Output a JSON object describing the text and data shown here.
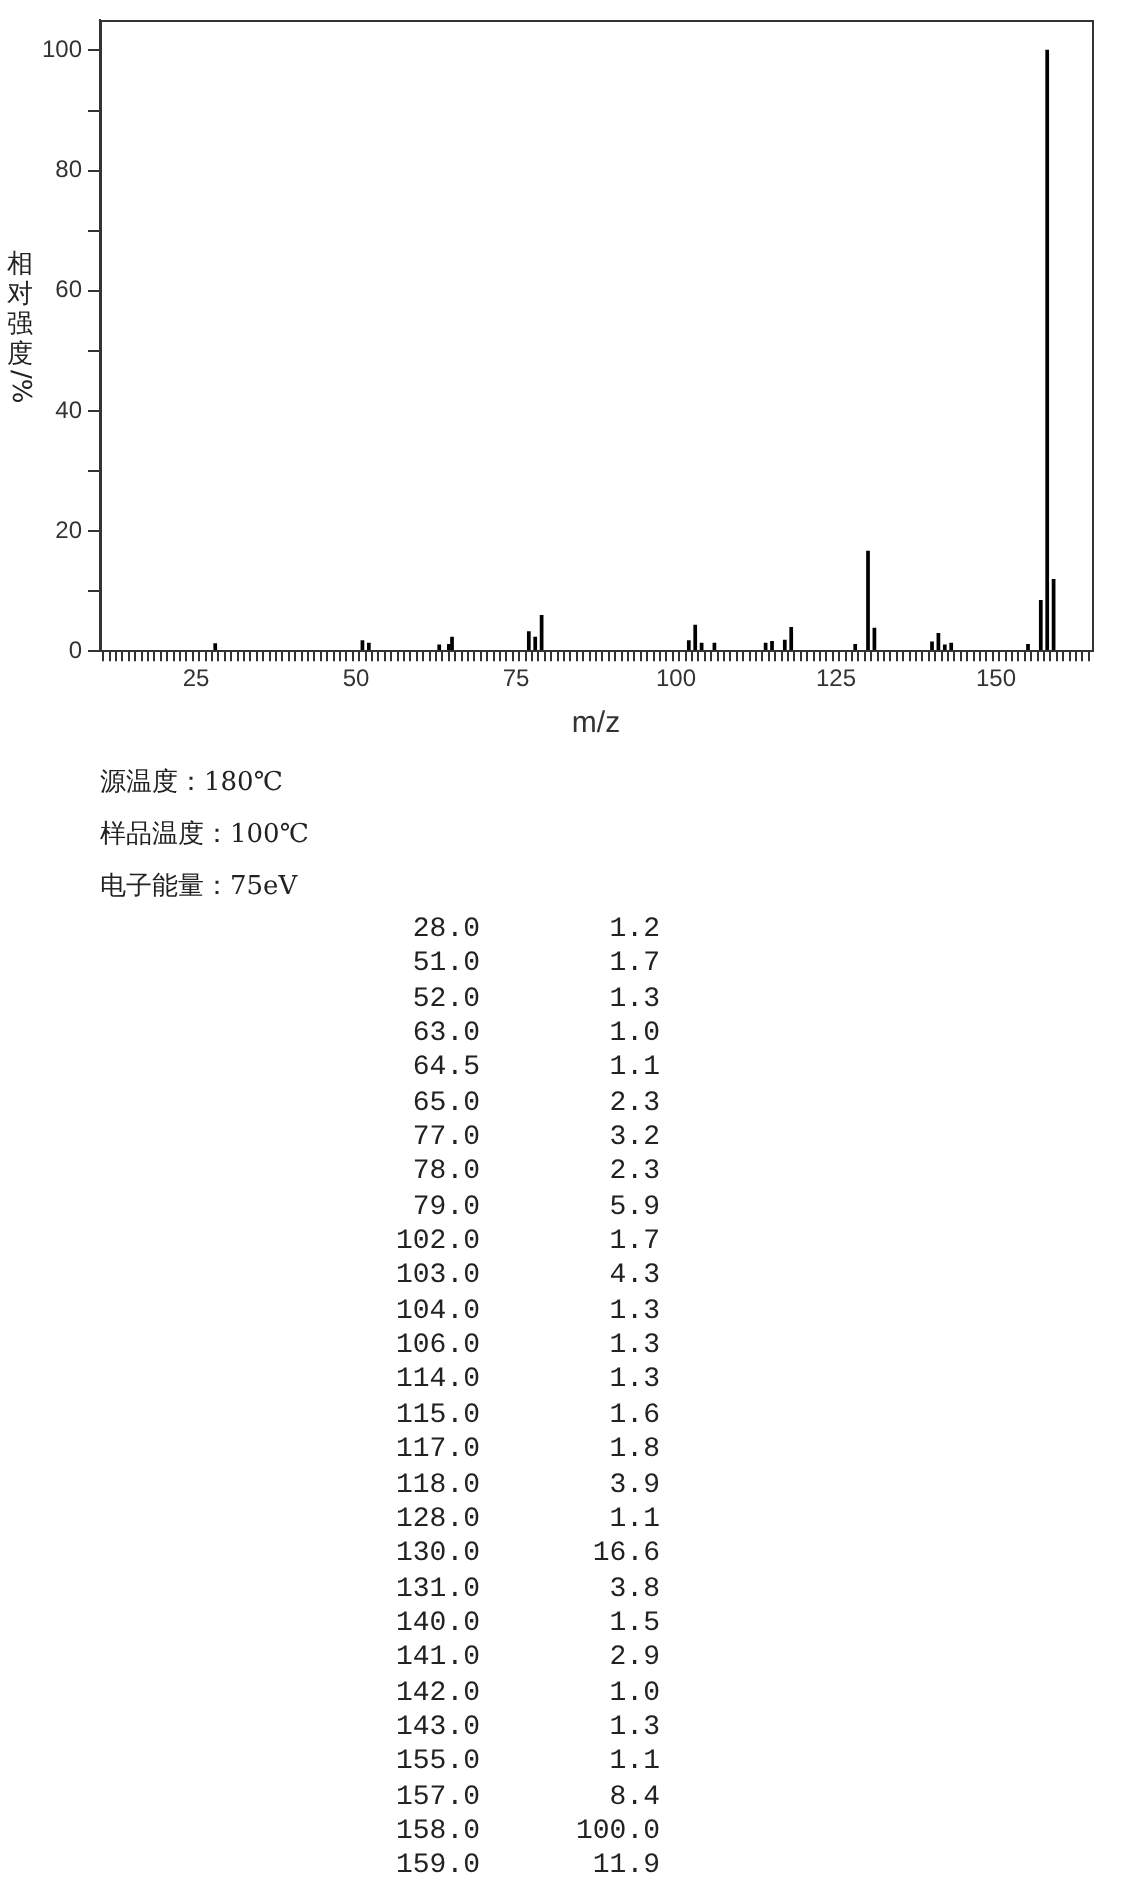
{
  "chart_data": [
    {
      "type": "bar",
      "xlabel": "m/z",
      "ylabel": "相对强度/%",
      "color": "#000000",
      "x": [
        28.0,
        51.0,
        52.0,
        63.0,
        64.5,
        65.0,
        77.0,
        78.0,
        79.0,
        102.0,
        103.0,
        104.0,
        106.0,
        114.0,
        115.0,
        117.0,
        118.0,
        128.0,
        130.0,
        131.0,
        140.0,
        141.0,
        142.0,
        143.0,
        155.0,
        157.0,
        158.0,
        159.0
      ],
      "values": [
        1.2,
        1.7,
        1.3,
        1.0,
        1.1,
        2.3,
        3.2,
        2.3,
        5.9,
        1.7,
        4.3,
        1.3,
        1.3,
        1.3,
        1.6,
        1.8,
        3.9,
        1.1,
        16.6,
        3.8,
        1.5,
        2.9,
        1.0,
        1.3,
        1.1,
        8.4,
        100.0,
        11.9
      ],
      "xlim": [
        10,
        165
      ],
      "xticks": [
        {
          "value": 11,
          "label": null
        },
        {
          "value": 12,
          "label": null
        },
        {
          "value": 13,
          "label": null
        },
        {
          "value": 14,
          "label": null
        },
        {
          "value": 15,
          "label": null
        },
        {
          "value": 16,
          "label": null
        },
        {
          "value": 17,
          "label": null
        },
        {
          "value": 18,
          "label": null
        },
        {
          "value": 19,
          "label": null
        },
        {
          "value": 20,
          "label": null
        },
        {
          "value": 21,
          "label": null
        },
        {
          "value": 22,
          "label": null
        },
        {
          "value": 23,
          "label": null
        },
        {
          "value": 24,
          "label": null
        },
        25,
        {
          "value": 26,
          "label": null
        },
        {
          "value": 27,
          "label": null
        },
        {
          "value": 28,
          "label": null
        },
        {
          "value": 29,
          "label": null
        },
        {
          "value": 30,
          "label": null
        },
        {
          "value": 31,
          "label": null
        },
        {
          "value": 32,
          "label": null
        },
        {
          "value": 33,
          "label": null
        },
        {
          "value": 34,
          "label": null
        },
        {
          "value": 35,
          "label": null
        },
        {
          "value": 36,
          "label": null
        },
        {
          "value": 37,
          "label": null
        },
        {
          "value": 38,
          "label": null
        },
        {
          "value": 39,
          "label": null
        },
        {
          "value": 40,
          "label": null
        },
        {
          "value": 41,
          "label": null
        },
        {
          "value": 42,
          "label": null
        },
        {
          "value": 43,
          "label": null
        },
        {
          "value": 44,
          "label": null
        },
        {
          "value": 45,
          "label": null
        },
        {
          "value": 46,
          "label": null
        },
        {
          "value": 47,
          "label": null
        },
        {
          "value": 48,
          "label": null
        },
        {
          "value": 49,
          "label": null
        },
        50,
        {
          "value": 51,
          "label": null
        },
        {
          "value": 52,
          "label": null
        },
        {
          "value": 53,
          "label": null
        },
        {
          "value": 54,
          "label": null
        },
        {
          "value": 55,
          "label": null
        },
        {
          "value": 56,
          "label": null
        },
        {
          "value": 57,
          "label": null
        },
        {
          "value": 58,
          "label": null
        },
        {
          "value": 59,
          "label": null
        },
        {
          "value": 60,
          "label": null
        },
        {
          "value": 61,
          "label": null
        },
        {
          "value": 62,
          "label": null
        },
        {
          "value": 63,
          "label": null
        },
        {
          "value": 64,
          "label": null
        },
        {
          "value": 65,
          "label": null
        },
        {
          "value": 66,
          "label": null
        },
        {
          "value": 67,
          "label": null
        },
        {
          "value": 68,
          "label": null
        },
        {
          "value": 69,
          "label": null
        },
        {
          "value": 70,
          "label": null
        },
        {
          "value": 71,
          "label": null
        },
        {
          "value": 72,
          "label": null
        },
        {
          "value": 73,
          "label": null
        },
        {
          "value": 74,
          "label": null
        },
        75,
        {
          "value": 76,
          "label": null
        },
        {
          "value": 77,
          "label": null
        },
        {
          "value": 78,
          "label": null
        },
        {
          "value": 79,
          "label": null
        },
        {
          "value": 80,
          "label": null
        },
        {
          "value": 81,
          "label": null
        },
        {
          "value": 82,
          "label": null
        },
        {
          "value": 83,
          "label": null
        },
        {
          "value": 84,
          "label": null
        },
        {
          "value": 85,
          "label": null
        },
        {
          "value": 86,
          "label": null
        },
        {
          "value": 87,
          "label": null
        },
        {
          "value": 88,
          "label": null
        },
        {
          "value": 89,
          "label": null
        },
        {
          "value": 90,
          "label": null
        },
        {
          "value": 91,
          "label": null
        },
        {
          "value": 92,
          "label": null
        },
        {
          "value": 93,
          "label": null
        },
        {
          "value": 94,
          "label": null
        },
        {
          "value": 95,
          "label": null
        },
        {
          "value": 96,
          "label": null
        },
        {
          "value": 97,
          "label": null
        },
        {
          "value": 98,
          "label": null
        },
        {
          "value": 99,
          "label": null
        },
        100,
        {
          "value": 101,
          "label": null
        },
        {
          "value": 102,
          "label": null
        },
        {
          "value": 103,
          "label": null
        },
        {
          "value": 104,
          "label": null
        },
        {
          "value": 105,
          "label": null
        },
        {
          "value": 106,
          "label": null
        },
        {
          "value": 107,
          "label": null
        },
        {
          "value": 108,
          "label": null
        },
        {
          "value": 109,
          "label": null
        },
        {
          "value": 110,
          "label": null
        },
        {
          "value": 111,
          "label": null
        },
        {
          "value": 112,
          "label": null
        },
        {
          "value": 113,
          "label": null
        },
        {
          "value": 114,
          "label": null
        },
        {
          "value": 115,
          "label": null
        },
        {
          "value": 116,
          "label": null
        },
        {
          "value": 117,
          "label": null
        },
        {
          "value": 118,
          "label": null
        },
        {
          "value": 119,
          "label": null
        },
        {
          "value": 120,
          "label": null
        },
        {
          "value": 121,
          "label": null
        },
        {
          "value": 122,
          "label": null
        },
        {
          "value": 123,
          "label": null
        },
        {
          "value": 124,
          "label": null
        },
        125,
        {
          "value": 126,
          "label": null
        },
        {
          "value": 127,
          "label": null
        },
        {
          "value": 128,
          "label": null
        },
        {
          "value": 129,
          "label": null
        },
        {
          "value": 130,
          "label": null
        },
        {
          "value": 131,
          "label": null
        },
        {
          "value": 132,
          "label": null
        },
        {
          "value": 133,
          "label": null
        },
        {
          "value": 134,
          "label": null
        },
        {
          "value": 135,
          "label": null
        },
        {
          "value": 136,
          "label": null
        },
        {
          "value": 137,
          "label": null
        },
        {
          "value": 138,
          "label": null
        },
        {
          "value": 139,
          "label": null
        },
        {
          "value": 140,
          "label": null
        },
        {
          "value": 141,
          "label": null
        },
        {
          "value": 142,
          "label": null
        },
        {
          "value": 143,
          "label": null
        },
        {
          "value": 144,
          "label": null
        },
        {
          "value": 145,
          "label": null
        },
        {
          "value": 146,
          "label": null
        },
        {
          "value": 147,
          "label": null
        },
        {
          "value": 148,
          "label": null
        },
        {
          "value": 149,
          "label": null
        },
        150,
        {
          "value": 151,
          "label": null
        },
        {
          "value": 152,
          "label": null
        },
        {
          "value": 153,
          "label": null
        },
        {
          "value": 154,
          "label": null
        },
        {
          "value": 155,
          "label": null
        },
        {
          "value": 156,
          "label": null
        },
        {
          "value": 157,
          "label": null
        },
        {
          "value": 158,
          "label": null
        },
        {
          "value": 159,
          "label": null
        },
        {
          "value": 160,
          "label": null
        },
        {
          "value": 161,
          "label": null
        },
        {
          "value": 162,
          "label": null
        },
        {
          "value": 163,
          "label": null
        },
        {
          "value": 164,
          "label": null
        }
      ],
      "ylim": [
        0,
        105
      ],
      "yticks": [
        0,
        {
          "value": 10,
          "label": null
        },
        20,
        {
          "value": 30,
          "label": null
        },
        40,
        {
          "value": 50,
          "label": null
        },
        60,
        {
          "value": 70,
          "label": null
        },
        80,
        {
          "value": 90,
          "label": null
        },
        100
      ],
      "grid": false,
      "legend": false,
      "annotations": [
        "源温度：180℃",
        "样品温度：100℃",
        "电子能量：75eV"
      ]
    },
    {
      "type": "other",
      "annotations": [
        "28.0",
        "1.2",
        "51.0",
        "1.7",
        "52.0",
        "1.3",
        "63.0",
        "1.0",
        "64.5",
        "1.1",
        "65.0",
        "2.3",
        "77.0",
        "3.2",
        "78.0",
        "2.3",
        "79.0",
        "5.9",
        "102.0",
        "1.7",
        "103.0",
        "4.3",
        "104.0",
        "1.3",
        "106.0",
        "1.3",
        "114.0",
        "1.3",
        "115.0",
        "1.6",
        "117.0",
        "1.8",
        "118.0",
        "3.9",
        "128.0",
        "1.1",
        "130.0",
        "16.6",
        "131.0",
        "3.8",
        "140.0",
        "1.5",
        "141.0",
        "2.9",
        "142.0",
        "1.0",
        "143.0",
        "1.3",
        "155.0",
        "1.1",
        "157.0",
        "8.4",
        "158.0",
        "100.0",
        "159.0",
        "11.9"
      ]
    }
  ]
}
